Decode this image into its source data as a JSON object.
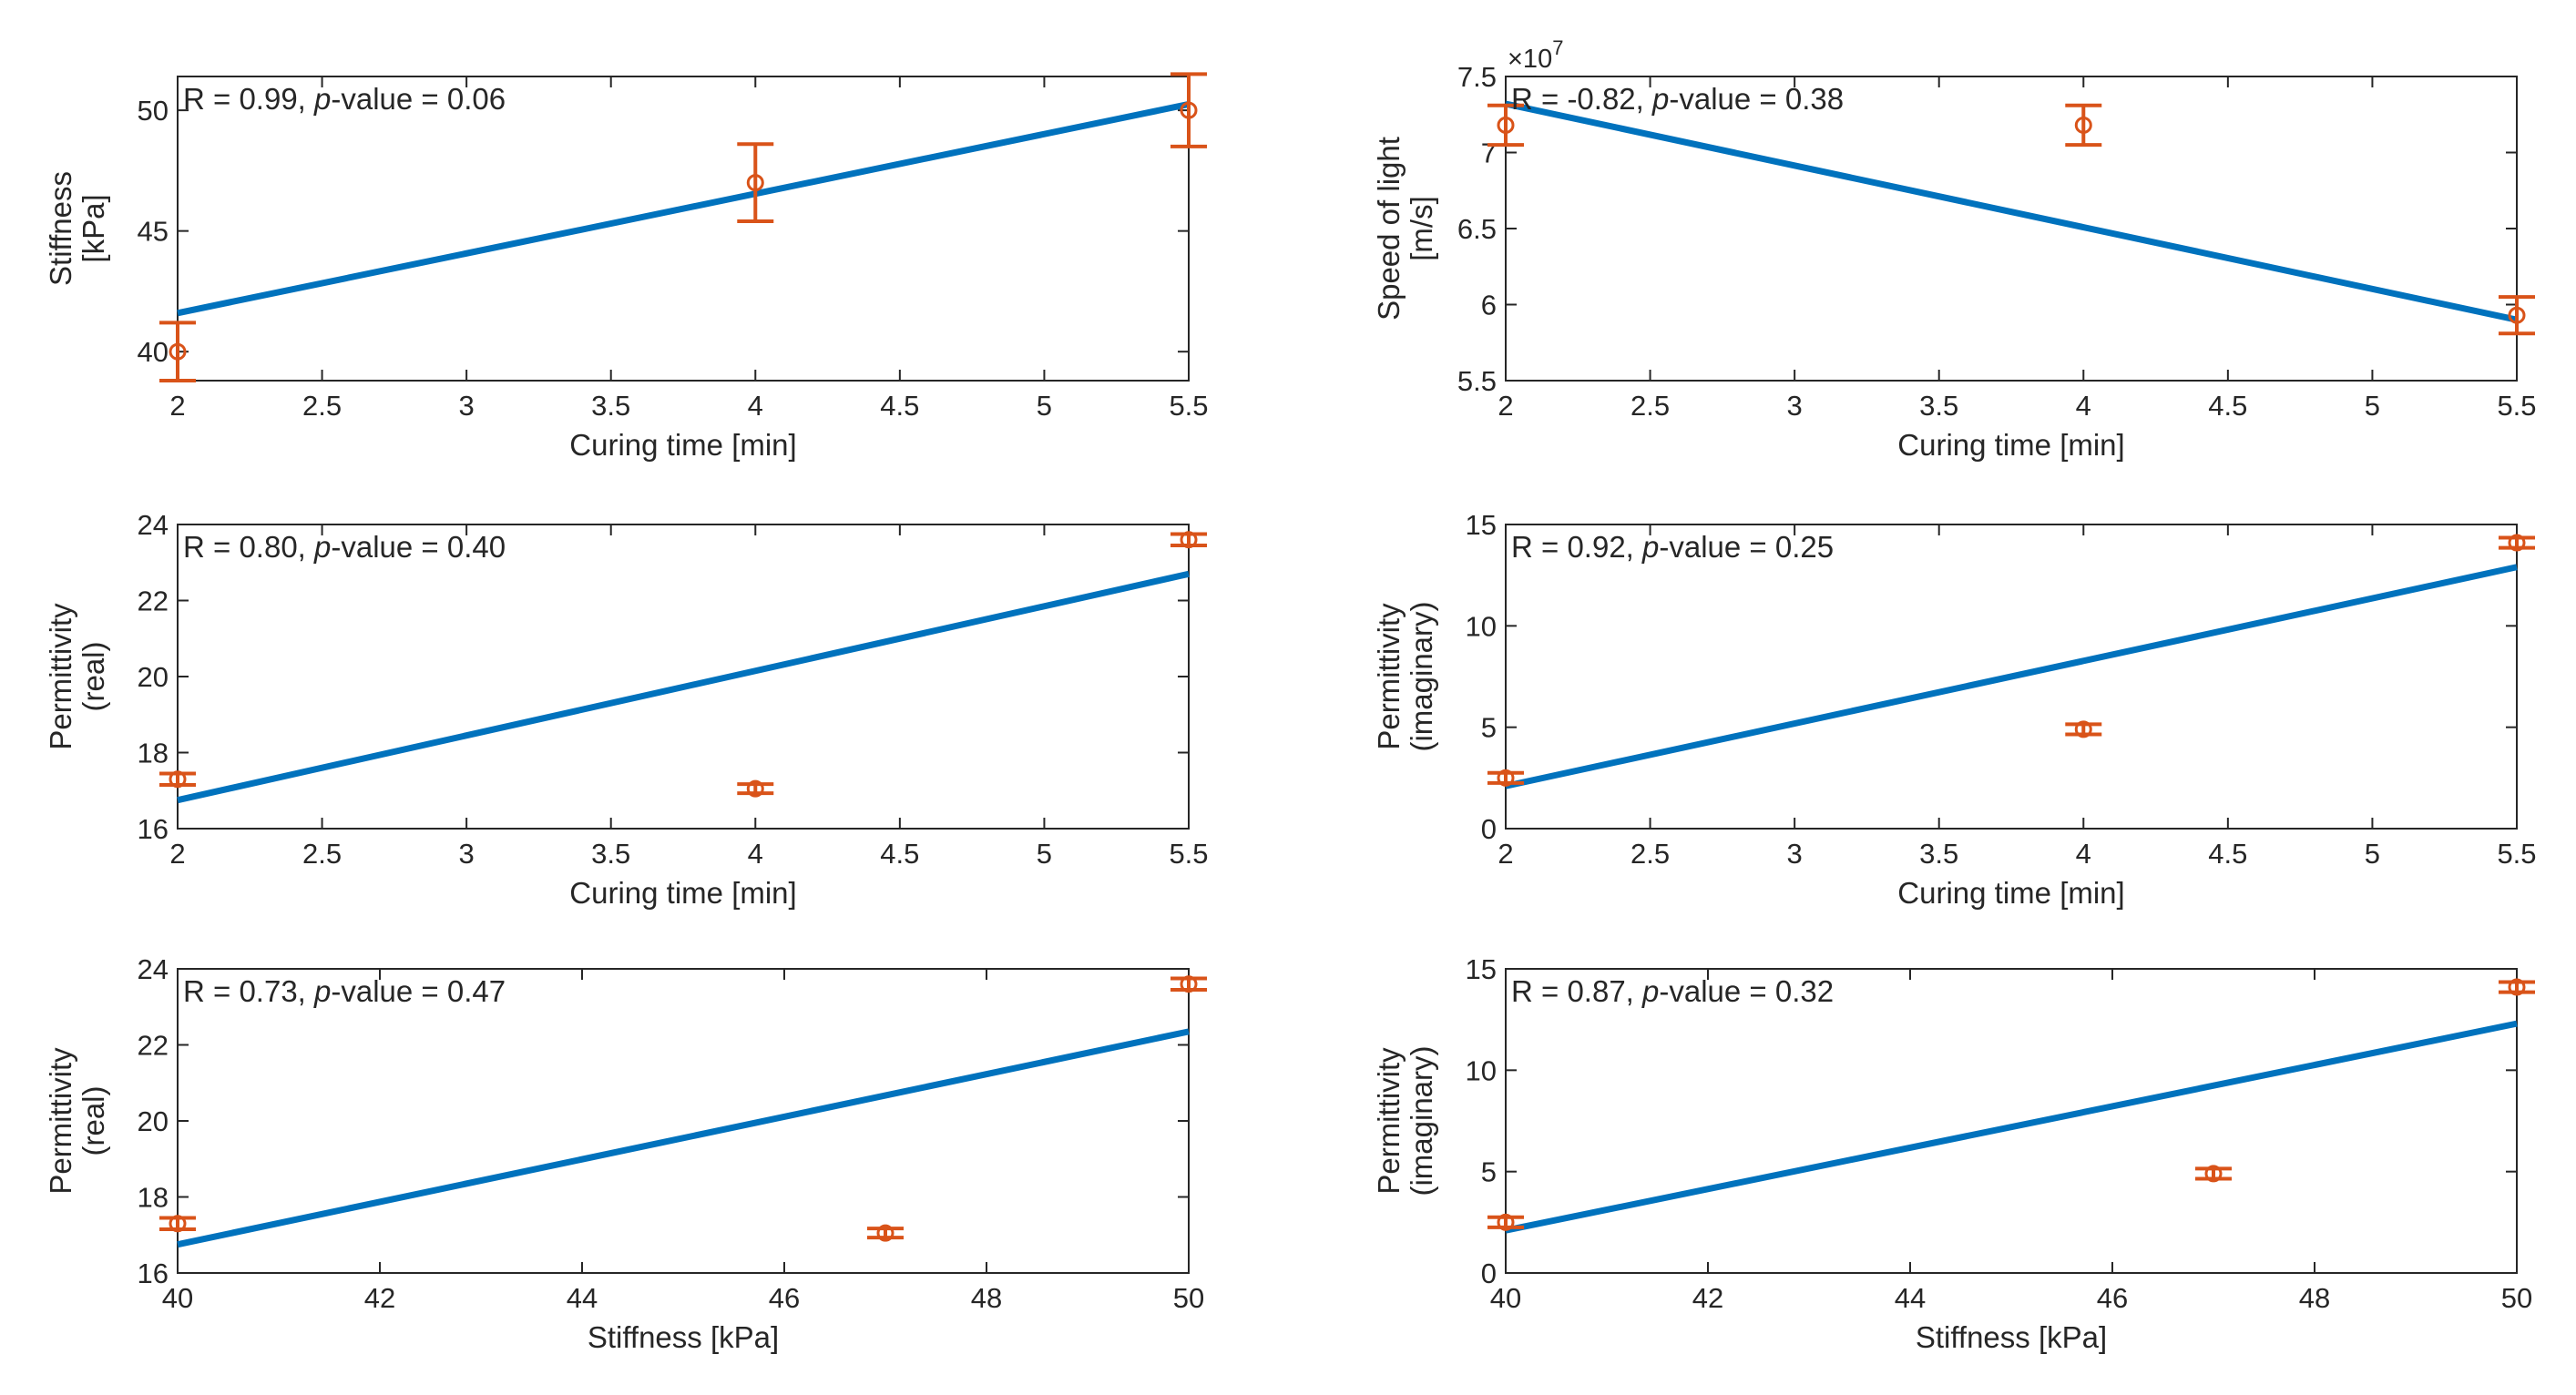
{
  "colors": {
    "fit": "#0072BD",
    "data": "#D95319",
    "axis": "#262626",
    "background": "#ffffff"
  },
  "chart_data": [
    {
      "type": "scatter",
      "id": "stiffness-vs-curing",
      "xlabel": "Curing time [min]",
      "ylabel": [
        "Stiffness",
        "[kPa]"
      ],
      "annotation": {
        "prefix": "R = 0.99, ",
        "p": "p",
        "suffix": "-value = 0.06"
      },
      "xlim": [
        2,
        5.5
      ],
      "ylim": [
        38.8,
        51.4
      ],
      "xticks": [
        2,
        2.5,
        3,
        3.5,
        4,
        4.5,
        5,
        5.5
      ],
      "xtick_labels": [
        "2",
        "2.5",
        "3",
        "3.5",
        "4",
        "4.5",
        "5",
        "5.5"
      ],
      "yticks": [
        40,
        45,
        50
      ],
      "ytick_labels": [
        "40",
        "45",
        "50"
      ],
      "exponent": "",
      "points": [
        {
          "x": 2,
          "y": 40,
          "err": 1.2
        },
        {
          "x": 4,
          "y": 47,
          "err": 1.6
        },
        {
          "x": 5.5,
          "y": 50,
          "err": 1.5
        }
      ],
      "fit": {
        "x": [
          2,
          5.5
        ],
        "y": [
          41.6,
          50.25
        ]
      }
    },
    {
      "type": "scatter",
      "id": "speed-vs-curing",
      "xlabel": "Curing time [min]",
      "ylabel": [
        "Speed of light",
        "[m/s]"
      ],
      "annotation": {
        "prefix": "R = -0.82, ",
        "p": "p",
        "suffix": "-value = 0.38"
      },
      "xlim": [
        2,
        5.5
      ],
      "ylim": [
        5.5,
        7.5
      ],
      "xticks": [
        2,
        2.5,
        3,
        3.5,
        4,
        4.5,
        5,
        5.5
      ],
      "xtick_labels": [
        "2",
        "2.5",
        "3",
        "3.5",
        "4",
        "4.5",
        "5",
        "5.5"
      ],
      "yticks": [
        5.5,
        6,
        6.5,
        7,
        7.5
      ],
      "ytick_labels": [
        "5.5",
        "6",
        "6.5",
        "7",
        "7.5"
      ],
      "exponent": "×10",
      "exponent_power": "7",
      "points": [
        {
          "x": 2,
          "y": 7.18,
          "err": 0.13
        },
        {
          "x": 4,
          "y": 7.18,
          "err": 0.13
        },
        {
          "x": 5.5,
          "y": 5.93,
          "err": 0.12
        }
      ],
      "fit": {
        "x": [
          2,
          5.5
        ],
        "y": [
          7.32,
          5.9
        ]
      }
    },
    {
      "type": "scatter",
      "id": "perm-real-vs-curing",
      "xlabel": "Curing time [min]",
      "ylabel": [
        "Permittivity",
        "(real)"
      ],
      "annotation": {
        "prefix": "R = 0.80, ",
        "p": "p",
        "suffix": "-value = 0.40"
      },
      "xlim": [
        2,
        5.5
      ],
      "ylim": [
        16,
        24
      ],
      "xticks": [
        2,
        2.5,
        3,
        3.5,
        4,
        4.5,
        5,
        5.5
      ],
      "xtick_labels": [
        "2",
        "2.5",
        "3",
        "3.5",
        "4",
        "4.5",
        "5",
        "5.5"
      ],
      "yticks": [
        16,
        18,
        20,
        22,
        24
      ],
      "ytick_labels": [
        "16",
        "18",
        "20",
        "22",
        "24"
      ],
      "exponent": "",
      "points": [
        {
          "x": 2,
          "y": 17.3,
          "err": 0.15
        },
        {
          "x": 4,
          "y": 17.05,
          "err": 0.12
        },
        {
          "x": 5.5,
          "y": 23.6,
          "err": 0.15
        }
      ],
      "fit": {
        "x": [
          2,
          5.5
        ],
        "y": [
          16.75,
          22.7
        ]
      }
    },
    {
      "type": "scatter",
      "id": "perm-imag-vs-curing",
      "xlabel": "Curing time [min]",
      "ylabel": [
        "Permittivity",
        "(imaginary)"
      ],
      "annotation": {
        "prefix": "R = 0.92, ",
        "p": "p",
        "suffix": "-value = 0.25"
      },
      "xlim": [
        2,
        5.5
      ],
      "ylim": [
        0,
        15
      ],
      "xticks": [
        2,
        2.5,
        3,
        3.5,
        4,
        4.5,
        5,
        5.5
      ],
      "xtick_labels": [
        "2",
        "2.5",
        "3",
        "3.5",
        "4",
        "4.5",
        "5",
        "5.5"
      ],
      "yticks": [
        0,
        5,
        10,
        15
      ],
      "ytick_labels": [
        "0",
        "5",
        "10",
        "15"
      ],
      "exponent": "",
      "points": [
        {
          "x": 2,
          "y": 2.5,
          "err": 0.25
        },
        {
          "x": 4,
          "y": 4.9,
          "err": 0.25
        },
        {
          "x": 5.5,
          "y": 14.1,
          "err": 0.25
        }
      ],
      "fit": {
        "x": [
          2,
          5.5
        ],
        "y": [
          2.1,
          12.9
        ]
      }
    },
    {
      "type": "scatter",
      "id": "perm-real-vs-stiffness",
      "xlabel": "Stiffness [kPa]",
      "ylabel": [
        "Permittivity",
        "(real)"
      ],
      "annotation": {
        "prefix": "R = 0.73, ",
        "p": "p",
        "suffix": "-value = 0.47"
      },
      "xlim": [
        40,
        50
      ],
      "ylim": [
        16,
        24
      ],
      "xticks": [
        40,
        42,
        44,
        46,
        48,
        50
      ],
      "xtick_labels": [
        "40",
        "42",
        "44",
        "46",
        "48",
        "50"
      ],
      "yticks": [
        16,
        18,
        20,
        22,
        24
      ],
      "ytick_labels": [
        "16",
        "18",
        "20",
        "22",
        "24"
      ],
      "exponent": "",
      "points": [
        {
          "x": 40,
          "y": 17.3,
          "err": 0.15
        },
        {
          "x": 47,
          "y": 17.05,
          "err": 0.12
        },
        {
          "x": 50,
          "y": 23.6,
          "err": 0.15
        }
      ],
      "fit": {
        "x": [
          40,
          50
        ],
        "y": [
          16.75,
          22.35
        ]
      }
    },
    {
      "type": "scatter",
      "id": "perm-imag-vs-stiffness",
      "xlabel": "Stiffness [kPa]",
      "ylabel": [
        "Permittivity",
        "(imaginary)"
      ],
      "annotation": {
        "prefix": "R = 0.87, ",
        "p": "p",
        "suffix": "-value = 0.32"
      },
      "xlim": [
        40,
        50
      ],
      "ylim": [
        0,
        15
      ],
      "xticks": [
        40,
        42,
        44,
        46,
        48,
        50
      ],
      "xtick_labels": [
        "40",
        "42",
        "44",
        "46",
        "48",
        "50"
      ],
      "yticks": [
        0,
        5,
        10,
        15
      ],
      "ytick_labels": [
        "0",
        "5",
        "10",
        "15"
      ],
      "exponent": "",
      "points": [
        {
          "x": 40,
          "y": 2.5,
          "err": 0.25
        },
        {
          "x": 47,
          "y": 4.9,
          "err": 0.25
        },
        {
          "x": 50,
          "y": 14.1,
          "err": 0.25
        }
      ],
      "fit": {
        "x": [
          40,
          50
        ],
        "y": [
          2.1,
          12.3
        ]
      }
    }
  ]
}
